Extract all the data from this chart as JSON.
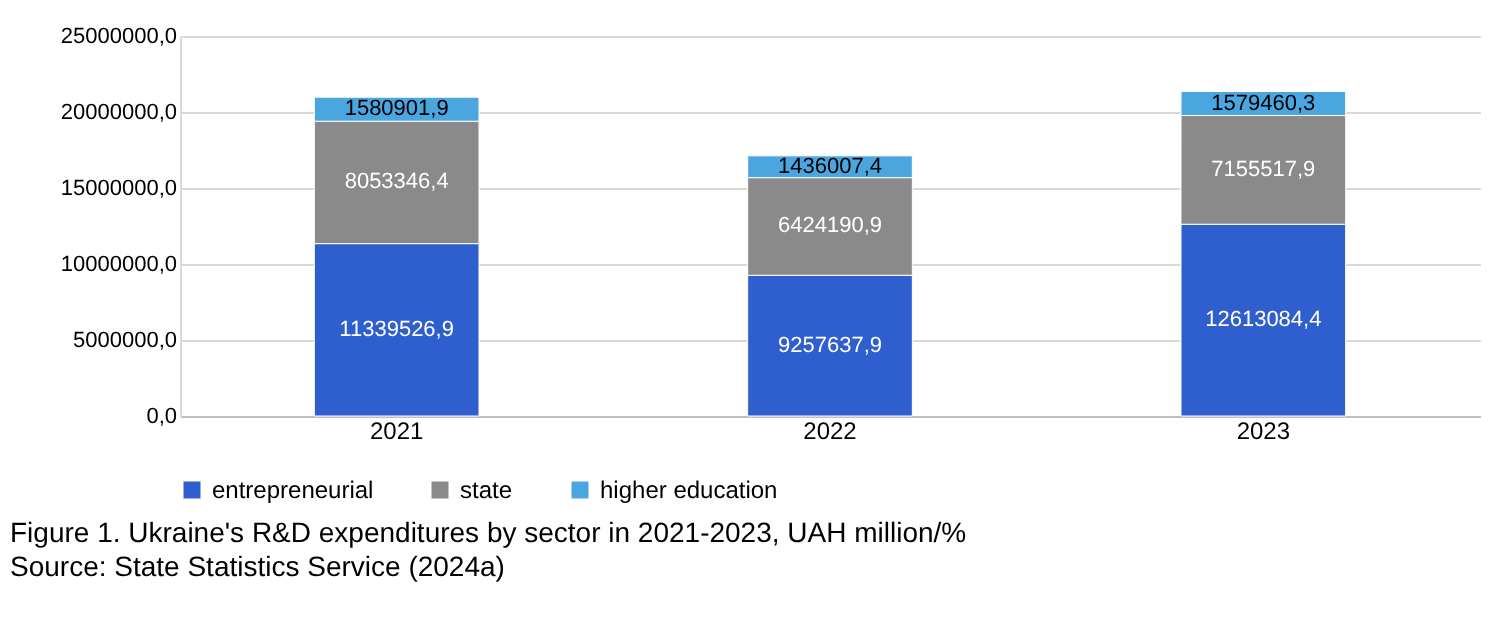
{
  "chart_data": {
    "type": "bar",
    "stacked": true,
    "categories": [
      "2021",
      "2022",
      "2023"
    ],
    "series": [
      {
        "name": "entrepreneurial",
        "color": "#2f5fcf",
        "values": [
          11339526.9,
          9257637.9,
          12613084.4
        ],
        "value_labels": [
          "11339526,9",
          "9257637,9",
          "12613084,4"
        ]
      },
      {
        "name": "state",
        "color": "#8a8a8a",
        "values": [
          8053346.4,
          6424190.9,
          7155517.9
        ],
        "value_labels": [
          "8053346,4",
          "6424190,9",
          "7155517,9"
        ]
      },
      {
        "name": "higher education",
        "color": "#4ba6e0",
        "values": [
          1580901.9,
          1436007.4,
          1579460.3
        ],
        "value_labels": [
          "1580901,9",
          "1436007,4",
          "1579460,3"
        ]
      }
    ],
    "ylim": [
      0,
      25000000
    ],
    "yticks": [
      {
        "value": 0,
        "label": "0,0"
      },
      {
        "value": 5000000,
        "label": "5000000,0"
      },
      {
        "value": 10000000,
        "label": "10000000,0"
      },
      {
        "value": 15000000,
        "label": "15000000,0"
      },
      {
        "value": 20000000,
        "label": "20000000,0"
      },
      {
        "value": 25000000,
        "label": "25000000,0"
      }
    ],
    "grid": "y",
    "legend": "bottom",
    "annotations": [
      "Figure 1. Ukraine's R&D expenditures by sector in 2021-2023, UAH million/%",
      "Source: State Statistics Service (2024a)"
    ]
  }
}
